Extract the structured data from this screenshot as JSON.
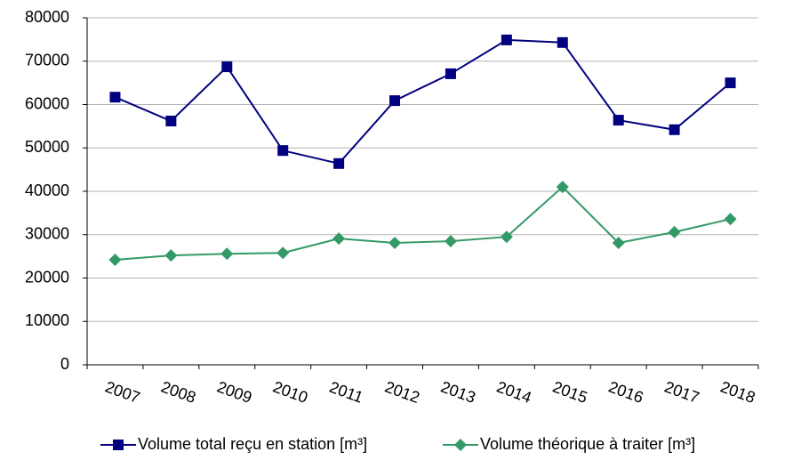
{
  "chart_data": {
    "type": "line",
    "categories": [
      "2007",
      "2008",
      "2009",
      "2010",
      "2011",
      "2012",
      "2013",
      "2014",
      "2015",
      "2016",
      "2017",
      "2018"
    ],
    "series": [
      {
        "name": "Volume total reçu en station [m³]",
        "color": "#000080",
        "marker": "square",
        "values": [
          61700,
          56200,
          68700,
          49400,
          46400,
          60900,
          67100,
          74900,
          74300,
          56400,
          54200,
          65000
        ]
      },
      {
        "name": "Volume théorique à traiter [m³]",
        "color": "#339966",
        "marker": "diamond",
        "values": [
          24200,
          25200,
          25600,
          25800,
          29100,
          28100,
          28500,
          29500,
          41000,
          28100,
          30600,
          33600
        ]
      }
    ],
    "ylim": [
      0,
      80000
    ],
    "yticks": [
      0,
      10000,
      20000,
      30000,
      40000,
      50000,
      60000,
      70000,
      80000
    ],
    "grid": true,
    "legend": "bottom"
  }
}
